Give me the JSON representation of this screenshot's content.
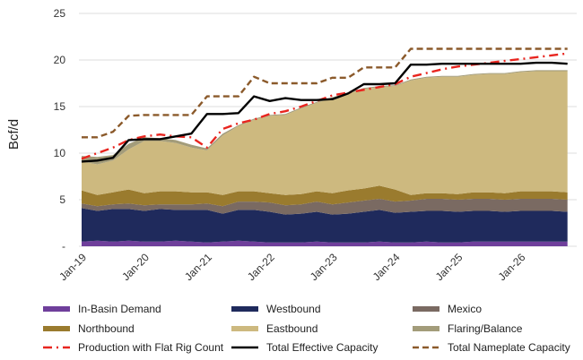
{
  "chart_data": {
    "type": "area",
    "title": "",
    "xlabel": "",
    "ylabel": "Bcf/d",
    "ylim": [
      0,
      25
    ],
    "yticks": [
      0,
      5,
      10,
      15,
      20,
      25
    ],
    "ytick_labels": [
      "-",
      "5",
      "10",
      "15",
      "20",
      "25"
    ],
    "grid": true,
    "legend_position": "bottom",
    "x_tick_labels": [
      "Jan-19",
      "Jan-20",
      "Jan-21",
      "Jan-22",
      "Jan-23",
      "Jan-24",
      "Jan-25",
      "Jan-26"
    ],
    "x_start_year": 2019,
    "x_step_years": 0.25,
    "stacked_series": [
      {
        "name": "In-Basin Demand",
        "color": "#6f3f9b",
        "values": [
          0.5,
          0.6,
          0.5,
          0.6,
          0.5,
          0.5,
          0.6,
          0.5,
          0.4,
          0.5,
          0.6,
          0.5,
          0.4,
          0.4,
          0.4,
          0.5,
          0.4,
          0.4,
          0.4,
          0.5,
          0.4,
          0.4,
          0.5,
          0.4,
          0.4,
          0.5,
          0.5,
          0.5,
          0.5,
          0.5,
          0.5,
          0.5
        ]
      },
      {
        "name": "Westbound",
        "color": "#1f2a5c",
        "values": [
          3.6,
          3.2,
          3.5,
          3.4,
          3.3,
          3.5,
          3.3,
          3.4,
          3.5,
          3.0,
          3.3,
          3.4,
          3.3,
          3.0,
          3.1,
          3.2,
          3.0,
          3.1,
          3.3,
          3.4,
          3.2,
          3.3,
          3.3,
          3.4,
          3.3,
          3.3,
          3.3,
          3.2,
          3.3,
          3.3,
          3.3,
          3.2
        ]
      },
      {
        "name": "Mexico",
        "color": "#7a6a62",
        "values": [
          0.5,
          0.5,
          0.5,
          0.6,
          0.6,
          0.5,
          0.6,
          0.6,
          0.7,
          0.8,
          0.9,
          0.9,
          1.0,
          1.0,
          1.0,
          1.1,
          1.1,
          1.2,
          1.2,
          1.2,
          1.2,
          1.2,
          1.3,
          1.3,
          1.3,
          1.3,
          1.3,
          1.3,
          1.3,
          1.3,
          1.3,
          1.3
        ]
      },
      {
        "name": "Northbound",
        "color": "#9a7b2e",
        "values": [
          1.4,
          1.2,
          1.3,
          1.5,
          1.3,
          1.4,
          1.4,
          1.3,
          1.2,
          1.2,
          1.1,
          1.1,
          1.0,
          1.1,
          1.1,
          1.1,
          1.2,
          1.3,
          1.3,
          1.4,
          1.3,
          0.6,
          0.6,
          0.6,
          0.6,
          0.7,
          0.7,
          0.7,
          0.8,
          0.8,
          0.8,
          0.8
        ]
      },
      {
        "name": "Eastbound",
        "color": "#cdb97f",
        "values": [
          3.1,
          3.3,
          3.4,
          4.3,
          5.6,
          5.4,
          5.2,
          4.8,
          4.5,
          6.4,
          7.0,
          7.7,
          8.3,
          8.6,
          9.2,
          9.5,
          10.2,
          10.4,
          10.7,
          10.6,
          11.1,
          12.3,
          12.4,
          12.5,
          12.6,
          12.6,
          12.7,
          12.8,
          12.8,
          12.9,
          12.9,
          13.0
        ]
      },
      {
        "name": "Flaring/Balance",
        "color": "#a39c7a",
        "values": [
          0.6,
          0.8,
          0.6,
          0.6,
          0.4,
          0.3,
          0.3,
          0.3,
          0.2,
          0.2,
          0.1,
          0.1,
          0.1,
          0.1,
          0.1,
          0.1,
          0.1,
          0.1,
          0.1,
          0.1,
          0.1,
          0.1,
          0.1,
          0.1,
          0.1,
          0.1,
          0.1,
          0.1,
          0.1,
          0.1,
          0.1,
          0.1
        ]
      }
    ],
    "line_series": [
      {
        "name": "Production with Flat Rig Count",
        "color": "#e8251f",
        "style": "dashdot",
        "values": [
          9.4,
          10.0,
          10.6,
          11.4,
          11.8,
          12.0,
          11.8,
          11.7,
          10.6,
          12.6,
          13.2,
          13.6,
          14.2,
          14.5,
          15.0,
          15.6,
          16.2,
          16.5,
          16.8,
          17.1,
          17.4,
          18.2,
          18.6,
          19.0,
          19.3,
          19.5,
          19.7,
          19.9,
          20.1,
          20.3,
          20.5,
          20.7
        ]
      },
      {
        "name": "Total Effective Capacity",
        "color": "#000000",
        "style": "solid",
        "values": [
          9.1,
          9.2,
          9.5,
          11.4,
          11.5,
          11.5,
          11.8,
          12.1,
          14.2,
          14.2,
          14.3,
          16.1,
          15.6,
          15.9,
          15.7,
          15.7,
          15.8,
          16.4,
          17.4,
          17.4,
          17.5,
          19.5,
          19.5,
          19.6,
          19.6,
          19.6,
          19.6,
          19.6,
          19.6,
          19.7,
          19.7,
          19.6
        ]
      },
      {
        "name": "Total Nameplate Capacity",
        "color": "#8b5a2b",
        "style": "dashed",
        "values": [
          11.7,
          11.7,
          12.3,
          14.0,
          14.1,
          14.1,
          14.1,
          14.1,
          16.1,
          16.1,
          16.1,
          18.2,
          17.5,
          17.5,
          17.5,
          17.5,
          18.1,
          18.1,
          19.2,
          19.2,
          19.2,
          21.2,
          21.2,
          21.2,
          21.2,
          21.2,
          21.2,
          21.2,
          21.2,
          21.2,
          21.2,
          21.2
        ]
      }
    ]
  },
  "legend": [
    {
      "label": "In-Basin Demand",
      "kind": "swatch",
      "color": "#6f3f9b"
    },
    {
      "label": "Westbound",
      "kind": "swatch",
      "color": "#1f2a5c"
    },
    {
      "label": "Mexico",
      "kind": "swatch",
      "color": "#7a6a62"
    },
    {
      "label": "Northbound",
      "kind": "swatch",
      "color": "#9a7b2e"
    },
    {
      "label": "Eastbound",
      "kind": "swatch",
      "color": "#cdb97f"
    },
    {
      "label": "Flaring/Balance",
      "kind": "swatch",
      "color": "#a39c7a"
    },
    {
      "label": "Production with Flat Rig Count",
      "kind": "dashdot",
      "color": "#e8251f"
    },
    {
      "label": "Total Effective Capacity",
      "kind": "solid",
      "color": "#000000"
    },
    {
      "label": "Total Nameplate Capacity",
      "kind": "dashed",
      "color": "#8b5a2b"
    }
  ]
}
